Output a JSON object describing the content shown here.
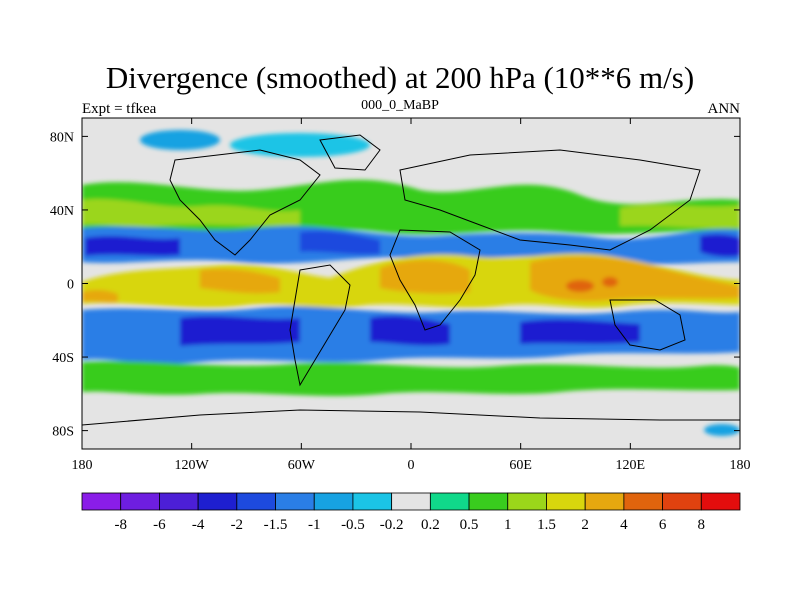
{
  "header": {
    "title": "Divergence (smoothed) at 200 hPa (10**6 m/s)",
    "left_label": "Expt = tfkea",
    "center_label": "000_0_MaBP",
    "right_label": "ANN"
  },
  "chart_data": {
    "type": "heatmap",
    "projection": "cylindrical equidistant",
    "xlim": [
      -180,
      180
    ],
    "ylim": [
      -90,
      90
    ],
    "x_ticks": [
      {
        "value": -180,
        "label": "180"
      },
      {
        "value": -120,
        "label": "120W"
      },
      {
        "value": -60,
        "label": "60W"
      },
      {
        "value": 0,
        "label": "0"
      },
      {
        "value": 60,
        "label": "60E"
      },
      {
        "value": 120,
        "label": "120E"
      },
      {
        "value": 180,
        "label": "180"
      }
    ],
    "y_ticks": [
      {
        "value": 80,
        "label": "80N"
      },
      {
        "value": 40,
        "label": "40N"
      },
      {
        "value": 0,
        "label": "0"
      },
      {
        "value": -40,
        "label": "40S"
      },
      {
        "value": -80,
        "label": "80S"
      }
    ],
    "colorbar": {
      "orientation": "horizontal",
      "colors": [
        "#8a1de8",
        "#6e1ee0",
        "#4c1fd6",
        "#1e1fd0",
        "#1d4ade",
        "#2a7ee6",
        "#17a2e2",
        "#1bc4e6",
        "#e4e4e4",
        "#10d98a",
        "#39cc1e",
        "#9bd61a",
        "#d8d60d",
        "#e6a80f",
        "#e0640d",
        "#e0420f",
        "#e30d0d"
      ],
      "boundaries": [
        "-8",
        "-6",
        "-4",
        "-2",
        "-1.5",
        "-1",
        "-0.5",
        "-0.2",
        "0.2",
        "0.5",
        "1",
        "1.5",
        "2",
        "4",
        "6",
        "8"
      ]
    },
    "regions": [
      {
        "lon": [
          -180,
          180
        ],
        "lat": [
          70,
          90
        ],
        "value": 0
      },
      {
        "lon": [
          -180,
          180
        ],
        "lat": [
          40,
          60
        ],
        "value": 0.8
      },
      {
        "lon": [
          -180,
          180
        ],
        "lat": [
          15,
          35
        ],
        "value": -1.5
      },
      {
        "lon": [
          -180,
          180
        ],
        "lat": [
          -8,
          8
        ],
        "value": 2.5
      },
      {
        "lon": [
          -180,
          180
        ],
        "lat": [
          -45,
          -15
        ],
        "value": -1.5
      },
      {
        "lon": [
          -180,
          180
        ],
        "lat": [
          -62,
          -48
        ],
        "value": 0.8
      },
      {
        "lon": [
          -180,
          180
        ],
        "lat": [
          -90,
          -65
        ],
        "value": 0
      }
    ]
  }
}
